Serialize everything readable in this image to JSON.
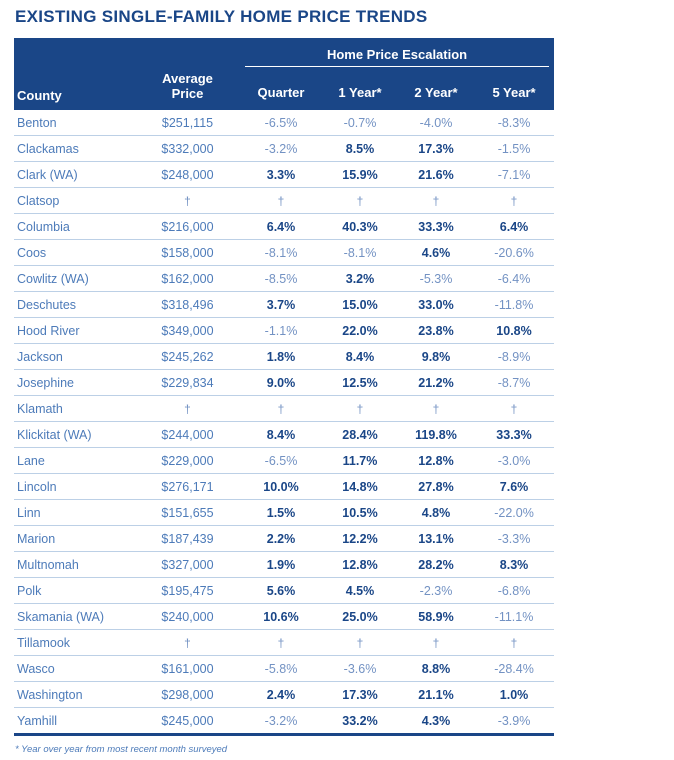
{
  "title": "EXISTING SINGLE-FAMILY HOME PRICE TRENDS",
  "table": {
    "group_header": "Home Price Escalation",
    "columns": [
      "County",
      "Average Price",
      "Quarter",
      "1 Year*",
      "2 Year*",
      "5 Year*"
    ],
    "no_data_symbol": "†",
    "rows": [
      {
        "county": "Benton",
        "price": "$251,115",
        "quarter": "-6.5%",
        "year1": "-0.7%",
        "year2": "-4.0%",
        "year5": "-8.3%"
      },
      {
        "county": "Clackamas",
        "price": "$332,000",
        "quarter": "-3.2%",
        "year1": "8.5%",
        "year2": "17.3%",
        "year5": "-1.5%"
      },
      {
        "county": "Clark (WA)",
        "price": "$248,000",
        "quarter": "3.3%",
        "year1": "15.9%",
        "year2": "21.6%",
        "year5": "-7.1%"
      },
      {
        "county": "Clatsop",
        "price": "†",
        "quarter": "†",
        "year1": "†",
        "year2": "†",
        "year5": "†"
      },
      {
        "county": "Columbia",
        "price": "$216,000",
        "quarter": "6.4%",
        "year1": "40.3%",
        "year2": "33.3%",
        "year5": "6.4%"
      },
      {
        "county": "Coos",
        "price": "$158,000",
        "quarter": "-8.1%",
        "year1": "-8.1%",
        "year2": "4.6%",
        "year5": "-20.6%"
      },
      {
        "county": "Cowlitz (WA)",
        "price": "$162,000",
        "quarter": "-8.5%",
        "year1": "3.2%",
        "year2": "-5.3%",
        "year5": "-6.4%"
      },
      {
        "county": "Deschutes",
        "price": "$318,496",
        "quarter": "3.7%",
        "year1": "15.0%",
        "year2": "33.0%",
        "year5": "-11.8%"
      },
      {
        "county": "Hood River",
        "price": "$349,000",
        "quarter": "-1.1%",
        "year1": "22.0%",
        "year2": "23.8%",
        "year5": "10.8%"
      },
      {
        "county": "Jackson",
        "price": "$245,262",
        "quarter": "1.8%",
        "year1": "8.4%",
        "year2": "9.8%",
        "year5": "-8.9%"
      },
      {
        "county": "Josephine",
        "price": "$229,834",
        "quarter": "9.0%",
        "year1": "12.5%",
        "year2": "21.2%",
        "year5": "-8.7%"
      },
      {
        "county": "Klamath",
        "price": "†",
        "quarter": "†",
        "year1": "†",
        "year2": "†",
        "year5": "†"
      },
      {
        "county": "Klickitat (WA)",
        "price": "$244,000",
        "quarter": "8.4%",
        "year1": "28.4%",
        "year2": "119.8%",
        "year5": "33.3%"
      },
      {
        "county": "Lane",
        "price": "$229,000",
        "quarter": "-6.5%",
        "year1": "11.7%",
        "year2": "12.8%",
        "year5": "-3.0%"
      },
      {
        "county": "Lincoln",
        "price": "$276,171",
        "quarter": "10.0%",
        "year1": "14.8%",
        "year2": "27.8%",
        "year5": "7.6%"
      },
      {
        "county": "Linn",
        "price": "$151,655",
        "quarter": "1.5%",
        "year1": "10.5%",
        "year2": "4.8%",
        "year5": "-22.0%"
      },
      {
        "county": "Marion",
        "price": "$187,439",
        "quarter": "2.2%",
        "year1": "12.2%",
        "year2": "13.1%",
        "year5": "-3.3%"
      },
      {
        "county": "Multnomah",
        "price": "$327,000",
        "quarter": "1.9%",
        "year1": "12.8%",
        "year2": "28.2%",
        "year5": "8.3%"
      },
      {
        "county": "Polk",
        "price": "$195,475",
        "quarter": "5.6%",
        "year1": "4.5%",
        "year2": "-2.3%",
        "year5": "-6.8%"
      },
      {
        "county": "Skamania (WA)",
        "price": "$240,000",
        "quarter": "10.6%",
        "year1": "25.0%",
        "year2": "58.9%",
        "year5": "-11.1%"
      },
      {
        "county": "Tillamook",
        "price": "†",
        "quarter": "†",
        "year1": "†",
        "year2": "†",
        "year5": "†"
      },
      {
        "county": "Wasco",
        "price": "$161,000",
        "quarter": "-5.8%",
        "year1": "-3.6%",
        "year2": "8.8%",
        "year5": "-28.4%"
      },
      {
        "county": "Washington",
        "price": "$298,000",
        "quarter": "2.4%",
        "year1": "17.3%",
        "year2": "21.1%",
        "year5": "1.0%"
      },
      {
        "county": "Yamhill",
        "price": "$245,000",
        "quarter": "-3.2%",
        "year1": "33.2%",
        "year2": "4.3%",
        "year5": "-3.9%"
      }
    ]
  },
  "footnote": "* Year over year from most recent month surveyed",
  "colors": {
    "header_bg": "#1a4687",
    "title": "#1a4687",
    "positive": "#1a4687",
    "regular": "#4d7bb9",
    "negative": "#7392c3",
    "divider": "#bcd0e6"
  }
}
